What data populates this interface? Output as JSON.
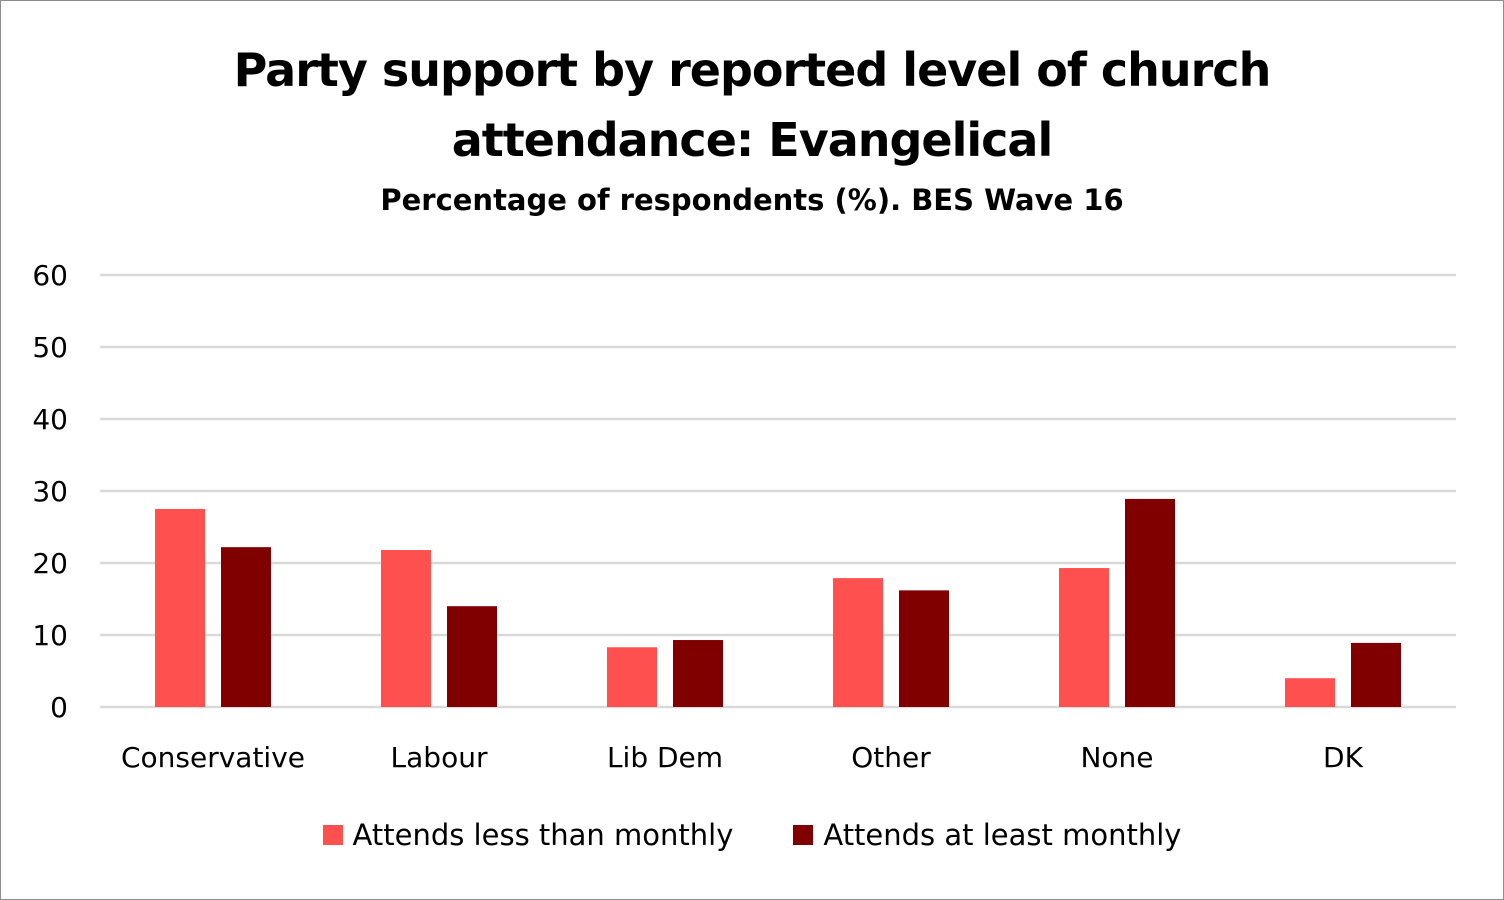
{
  "chart_data": {
    "type": "bar",
    "title": "Party support by reported level of church attendance: Evangelical",
    "title_lines": [
      "Party support by reported level of church",
      "attendance: Evangelical"
    ],
    "subtitle": "Percentage of respondents (%). BES Wave 16",
    "xlabel": "",
    "ylabel": "",
    "ylim": [
      0,
      60
    ],
    "yticks": [
      0,
      10,
      20,
      30,
      40,
      50,
      60
    ],
    "grid": true,
    "legend_position": "bottom",
    "categories": [
      "Conservative",
      "Labour",
      "Lib Dem",
      "Other",
      "None",
      "DK"
    ],
    "series": [
      {
        "name": "Attends less than monthly",
        "color": "#ff5050",
        "values": [
          27.5,
          21.8,
          8.3,
          17.9,
          19.3,
          4.0
        ]
      },
      {
        "name": "Attends at least monthly",
        "color": "#800000",
        "values": [
          22.2,
          14.0,
          9.3,
          16.2,
          28.9,
          8.9
        ]
      }
    ]
  }
}
